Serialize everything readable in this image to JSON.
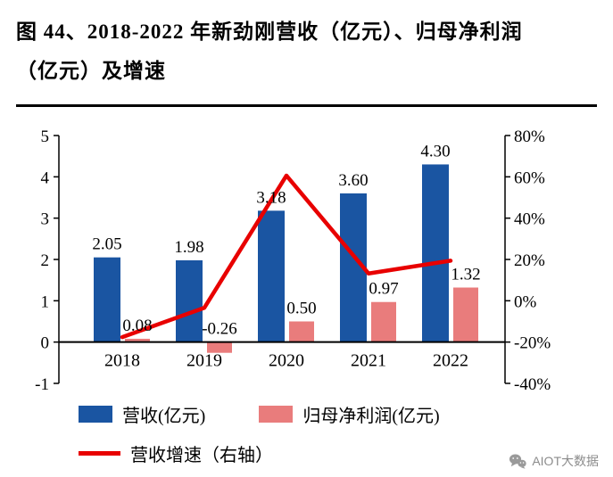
{
  "title": {
    "text": "图 44、2018-2022 年新劲刚营收（亿元）、归母净利润（亿元）及增速"
  },
  "footer": {
    "brand": "AIOT大数据",
    "icon": "wechat-icon"
  },
  "chart_data": {
    "type": "bar",
    "subtype": "combo-bar-line",
    "title": "2018-2022 年新劲刚营收（亿元）、归母净利润（亿元）及增速",
    "categories": [
      "2018",
      "2019",
      "2020",
      "2021",
      "2022"
    ],
    "series": [
      {
        "name": "营收(亿元)",
        "type": "bar",
        "axis": "left",
        "color": "#1A55A2",
        "values": [
          2.05,
          1.98,
          3.18,
          3.6,
          4.3
        ],
        "data_labels": [
          "2.05",
          "1.98",
          "3.18",
          "3.60",
          "4.30"
        ]
      },
      {
        "name": "归母净利润(亿元)",
        "type": "bar",
        "axis": "left",
        "color": "#E97C7C",
        "values": [
          0.08,
          -0.26,
          0.5,
          0.97,
          1.32
        ],
        "data_labels": [
          "0.08",
          "-0.26",
          "0.50",
          "0.97",
          "1.32"
        ]
      },
      {
        "name": "营收增速（右轴）",
        "type": "line",
        "axis": "right",
        "unit": "%",
        "color": "#E80000",
        "values": [
          -17.6,
          -3.4,
          60.6,
          13.2,
          19.4
        ]
      }
    ],
    "left_axis": {
      "min": -1,
      "max": 5,
      "ticks": [
        5,
        4,
        3,
        2,
        1,
        0,
        -1
      ]
    },
    "right_axis": {
      "min": -40,
      "max": 80,
      "ticks": [
        "80%",
        "60%",
        "40%",
        "20%",
        "0%",
        "-20%",
        "-40%"
      ]
    },
    "grid": "off",
    "legend_position": "bottom"
  }
}
